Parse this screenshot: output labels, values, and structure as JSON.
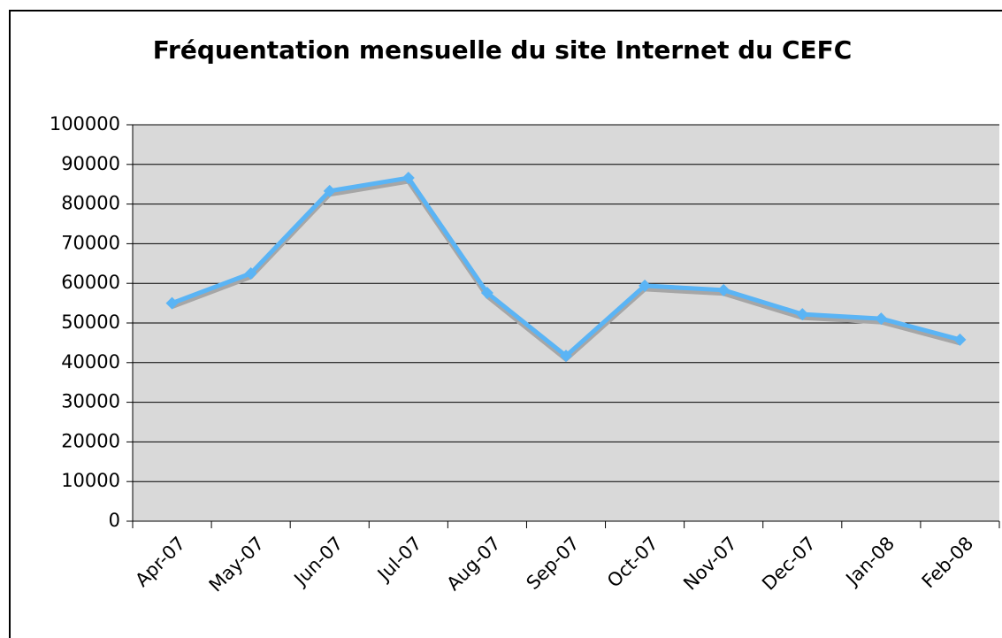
{
  "chart_data": {
    "type": "line",
    "title": "Fréquentation mensuelle du site Internet du CEFC",
    "categories": [
      "Apr-07",
      "May-07",
      "Jun-07",
      "Jul-07",
      "Aug-07",
      "Sep-07",
      "Oct-07",
      "Nov-07",
      "Dec-07",
      "Jan-08",
      "Feb-08"
    ],
    "values": [
      55000,
      62500,
      83300,
      86600,
      57600,
      41700,
      59400,
      58300,
      52200,
      51100,
      45800
    ],
    "color": "#5ab4f5",
    "ylim": [
      0,
      100000
    ],
    "yticks": [
      0,
      10000,
      20000,
      30000,
      40000,
      50000,
      60000,
      70000,
      80000,
      90000,
      100000
    ],
    "grid": true
  }
}
